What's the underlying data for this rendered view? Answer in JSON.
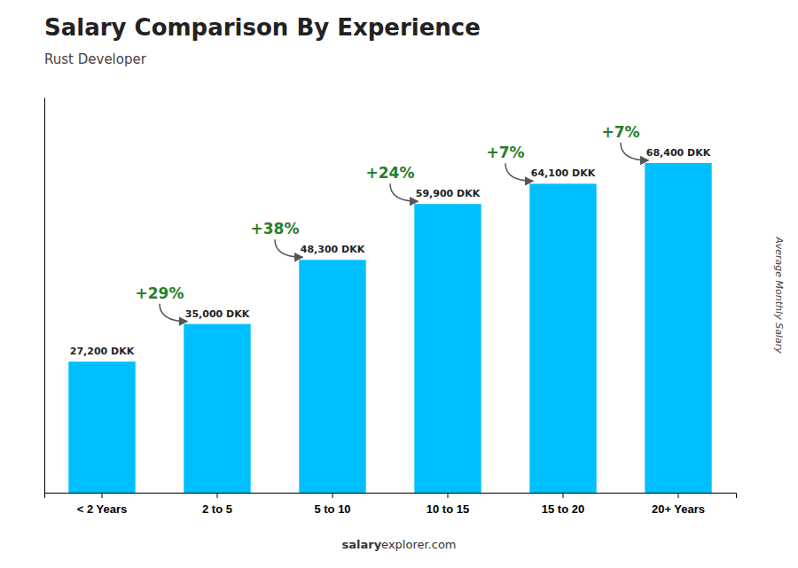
{
  "chart_data": {
    "type": "bar",
    "title": "Salary Comparison By Experience",
    "subtitle": "Rust Developer",
    "y_label": "Average Monthly Salary",
    "categories": [
      "< 2 Years",
      "2 to 5",
      "5 to 10",
      "10 to 15",
      "15 to 20",
      "20+ Years"
    ],
    "values": [
      27200,
      35000,
      48300,
      59900,
      64100,
      68400
    ],
    "value_labels": [
      "27,200 DKK",
      "35,000 DKK",
      "48,300 DKK",
      "59,900 DKK",
      "64,100 DKK",
      "68,400 DKK"
    ],
    "data_labels": true,
    "annotations": [
      "+29%",
      "+38%",
      "+24%",
      "+7%",
      "+7%"
    ],
    "footer": [
      "salary",
      "explorer.com"
    ],
    "color": "#00BFFF",
    "ylim": [
      0,
      82000
    ],
    "tick_labels": "x",
    "grid": false
  }
}
